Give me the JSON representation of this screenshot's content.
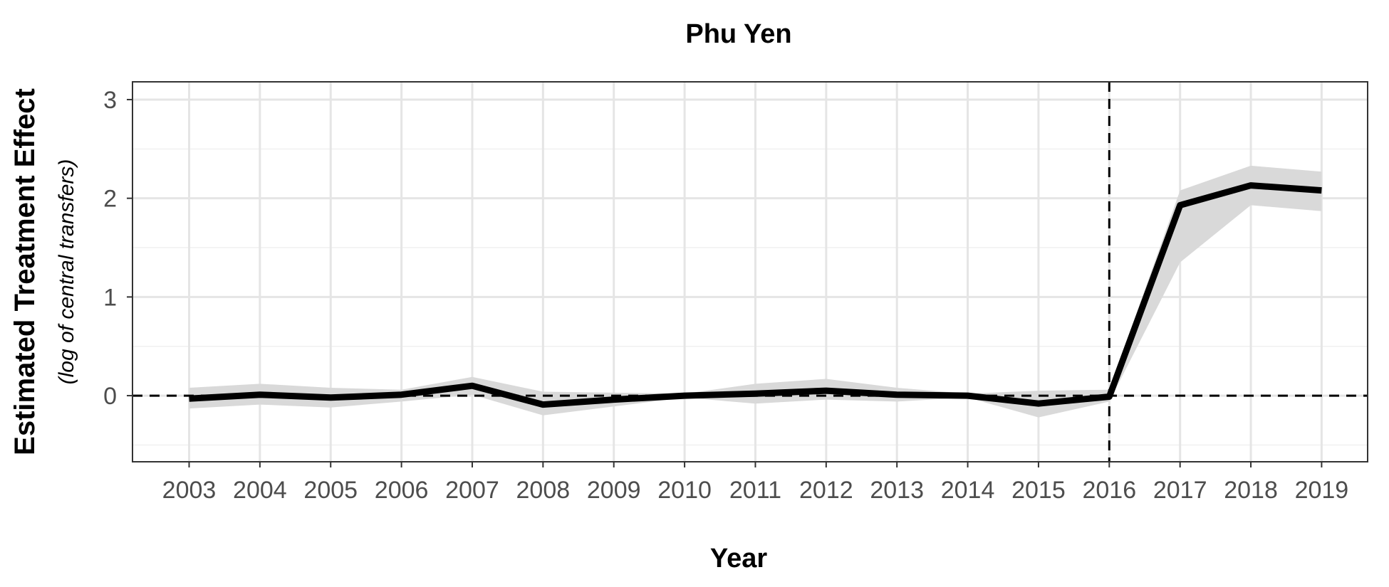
{
  "chart_data": {
    "type": "line",
    "title": "Phu Yen",
    "xlabel": "Year",
    "ylabel": "Estimated Treatment Effect",
    "ylabel_sub": "(log of central transfers)",
    "x": [
      2003,
      2004,
      2005,
      2006,
      2007,
      2008,
      2009,
      2010,
      2011,
      2012,
      2013,
      2014,
      2015,
      2016,
      2017,
      2018,
      2019
    ],
    "x_tick_labels": [
      "2003",
      "2004",
      "2005",
      "2006",
      "2007",
      "2008",
      "2009",
      "2010",
      "2011",
      "2012",
      "2013",
      "2014",
      "2015",
      "2016",
      "2017",
      "2018",
      "2019"
    ],
    "y_ticks": [
      0,
      1,
      2,
      3
    ],
    "y_tick_labels": [
      "0",
      "1",
      "2",
      "3"
    ],
    "xlim": [
      2002.2,
      2019.65
    ],
    "ylim": [
      -0.67,
      3.18
    ],
    "series": [
      {
        "values": [
          -0.03,
          0.01,
          -0.02,
          0.01,
          0.1,
          -0.09,
          -0.04,
          0.0,
          0.02,
          0.05,
          0.01,
          0.0,
          -0.08,
          -0.01,
          1.93,
          2.13,
          2.08
        ],
        "lower": [
          -0.13,
          -0.09,
          -0.12,
          -0.06,
          0.01,
          -0.2,
          -0.11,
          -0.02,
          -0.08,
          -0.04,
          -0.06,
          -0.02,
          -0.22,
          -0.06,
          1.35,
          1.93,
          1.87
        ],
        "upper": [
          0.08,
          0.12,
          0.08,
          0.06,
          0.19,
          0.04,
          0.03,
          0.02,
          0.12,
          0.17,
          0.08,
          0.02,
          0.05,
          0.06,
          2.08,
          2.33,
          2.27
        ],
        "color": "#000000",
        "band_color": "#d9d9d9"
      }
    ],
    "reference_lines": {
      "hline_y": 0,
      "vline_x": 2016
    },
    "grid": true,
    "legend": "none"
  }
}
